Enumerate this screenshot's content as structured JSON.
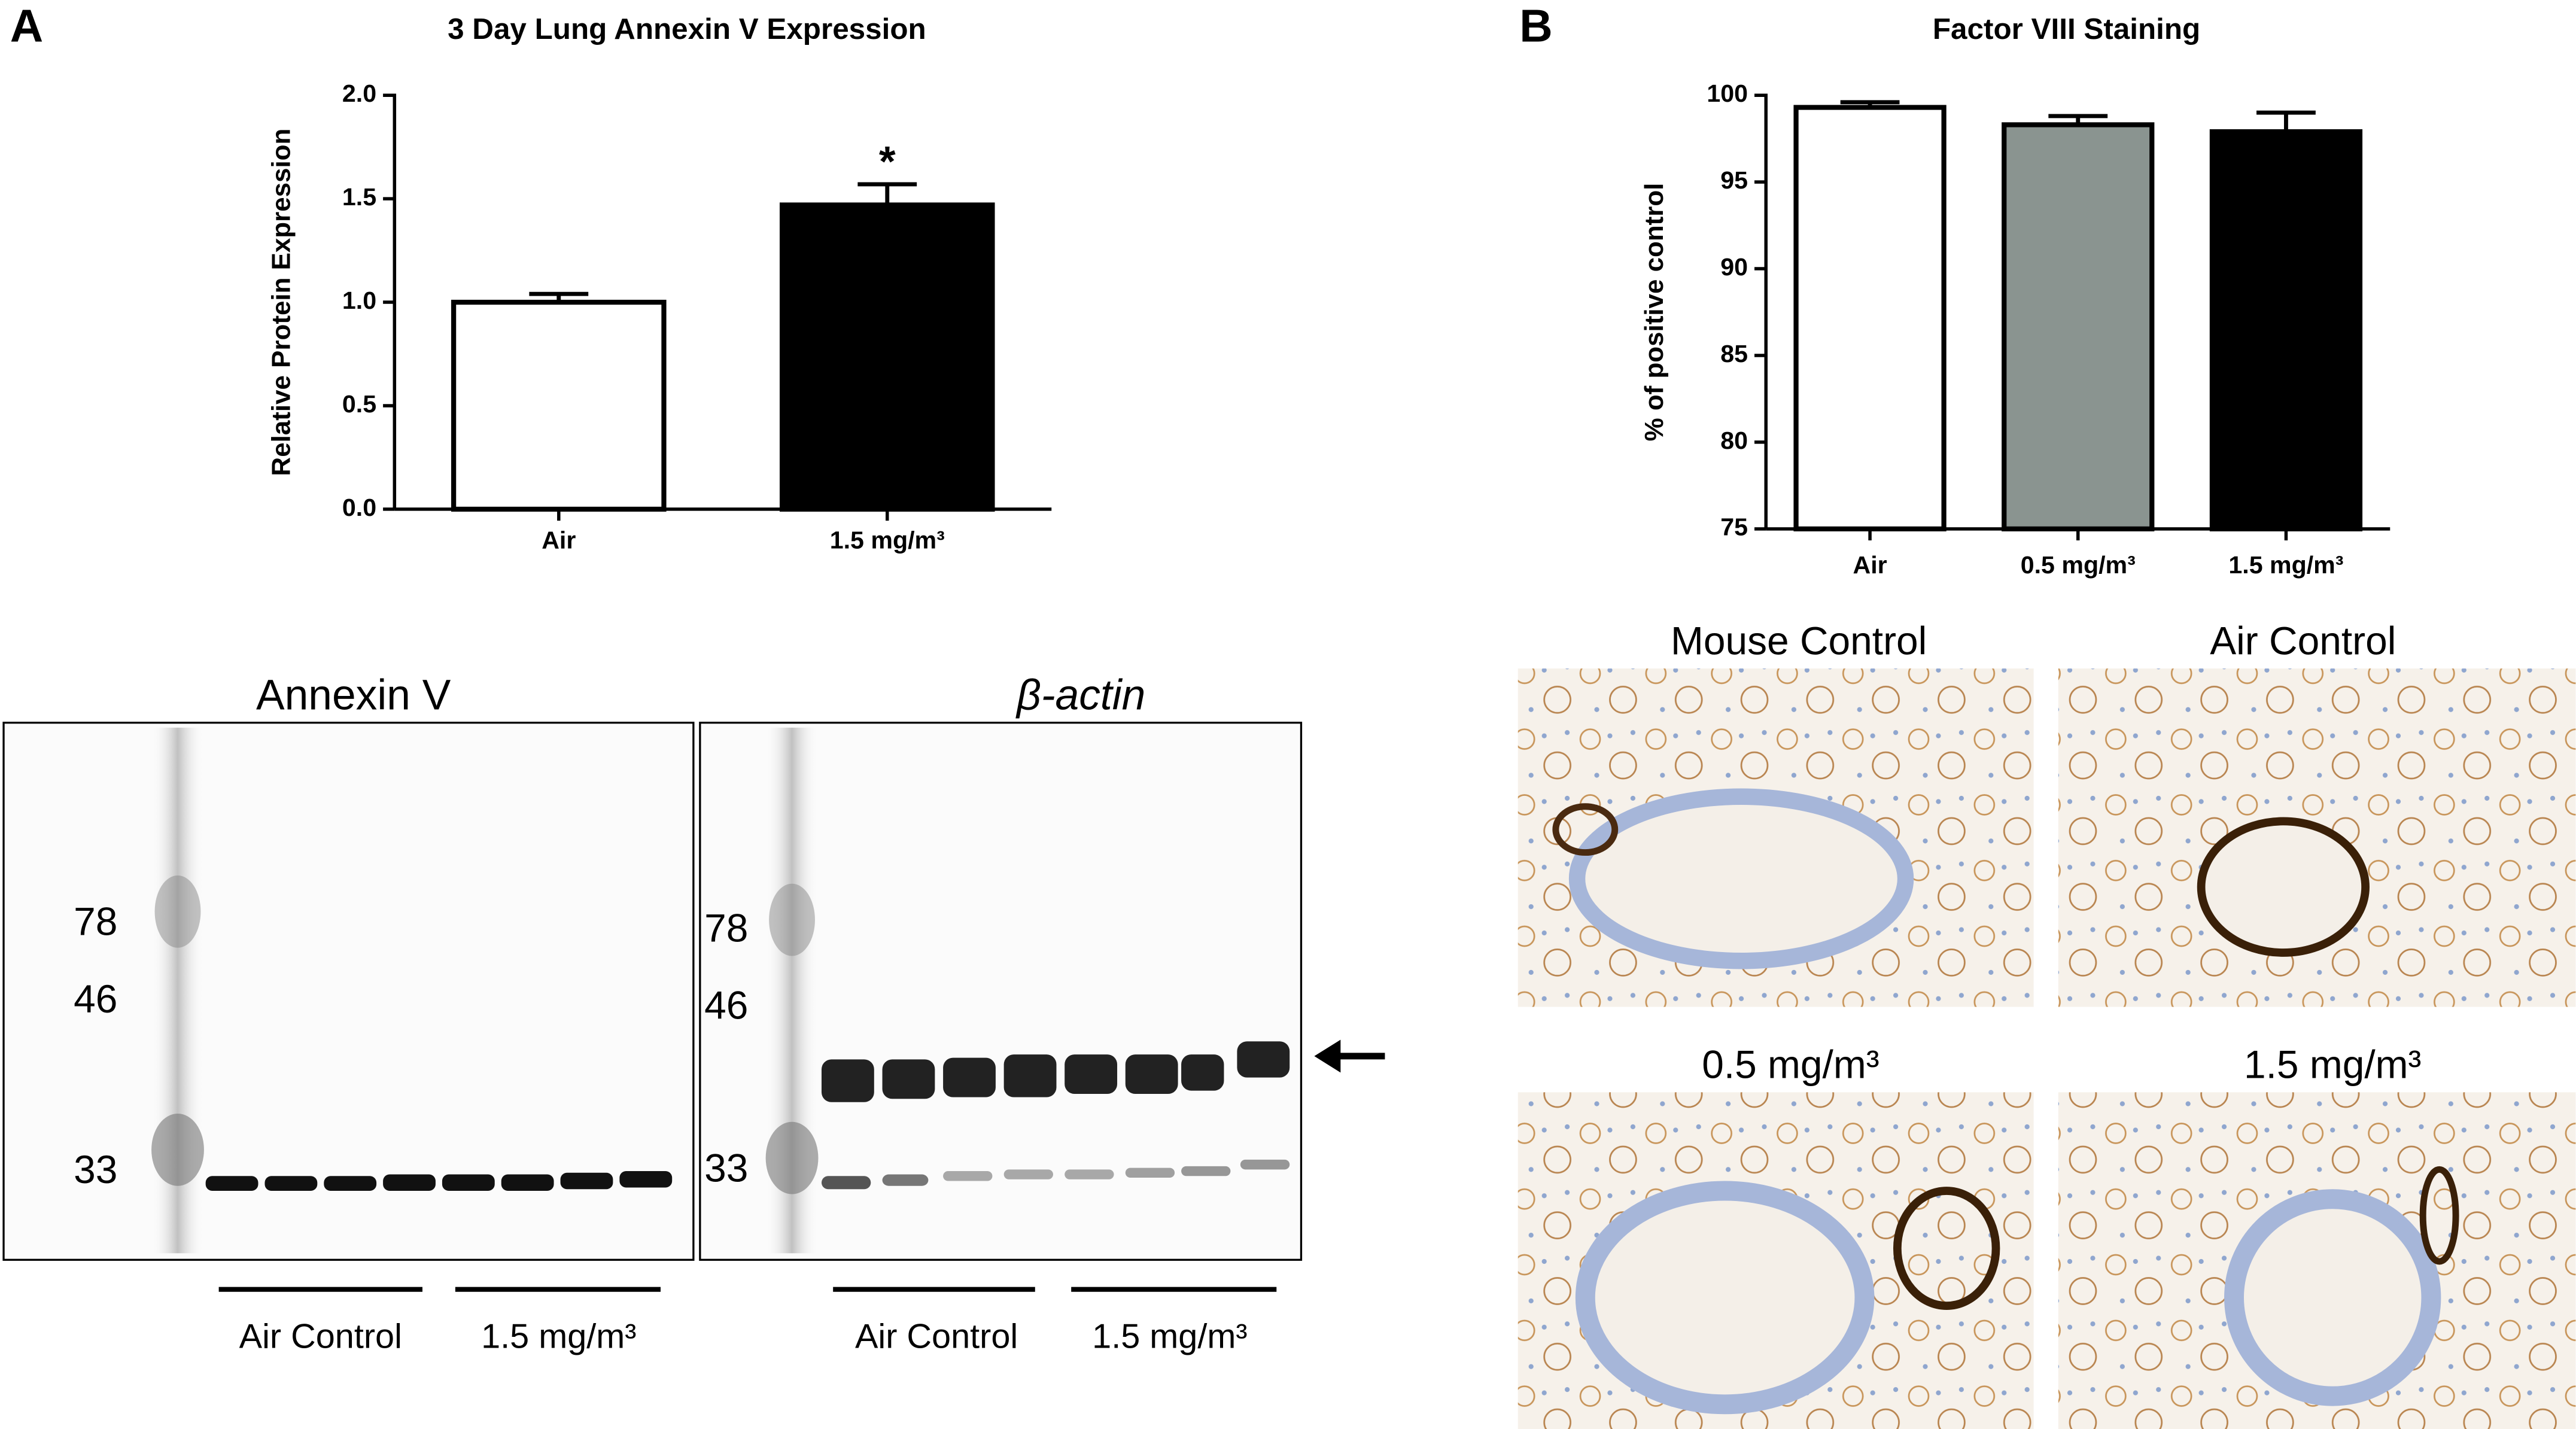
{
  "chart_data": [
    {
      "type": "bar",
      "panel": "A",
      "title": "3 Day Lung Annexin V Expression",
      "ylabel": "Relative Protein Expression",
      "categories": [
        "Air",
        "1.5 mg/m³"
      ],
      "values": [
        1.0,
        1.47
      ],
      "errors": [
        0.04,
        0.1
      ],
      "colors": [
        "#ffffff",
        "#000000"
      ],
      "ylim": [
        0,
        2.0
      ],
      "yticks": [
        {
          "value": 0,
          "label": "0.0"
        },
        {
          "value": 0.5,
          "label": "0.5"
        },
        {
          "value": 1.0,
          "label": "1.0"
        },
        {
          "value": 1.5,
          "label": "1.5"
        },
        {
          "value": 2.0,
          "label": "2.0"
        }
      ],
      "annotations": [
        {
          "text": "*",
          "x": "1.5 mg/m³"
        }
      ]
    },
    {
      "type": "bar",
      "panel": "B",
      "title": "Factor VIII Staining",
      "ylabel": "% of positive control",
      "categories": [
        "Air",
        "0.5 mg/m³",
        "1.5 mg/m³"
      ],
      "values": [
        99.3,
        98.3,
        97.9
      ],
      "errors": [
        0.3,
        0.5,
        1.1
      ],
      "colors": [
        "#ffffff",
        "#8a9490",
        "#000000"
      ],
      "ylim": [
        75,
        100
      ],
      "yticks": [
        75,
        80,
        85,
        90,
        95,
        100
      ]
    }
  ],
  "blots": [
    {
      "title": "Annexin V",
      "markers": [
        78,
        46,
        33
      ],
      "groups": [
        "Air Control",
        "1.5 mg/m³"
      ]
    },
    {
      "title": "β-actin",
      "markers": [
        78,
        46,
        33
      ],
      "groups": [
        "Air Control",
        "1.5 mg/m³"
      ]
    }
  ],
  "micrographs": [
    "Mouse Control",
    "Air Control",
    "0.5 mg/m³",
    "1.5 mg/m³"
  ]
}
